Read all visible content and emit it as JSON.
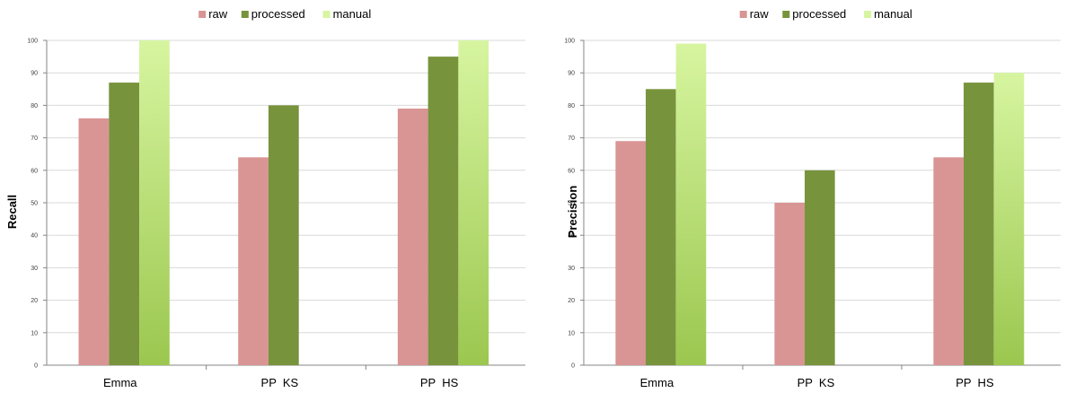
{
  "chart_data": [
    {
      "type": "bar",
      "categories": [
        "Emma",
        "PP  KS",
        "PP  HS"
      ],
      "series": [
        {
          "name": "raw",
          "values": [
            76,
            64,
            79
          ]
        },
        {
          "name": "processed",
          "values": [
            87,
            80,
            95
          ]
        },
        {
          "name": "manual",
          "values": [
            100,
            null,
            100
          ]
        }
      ],
      "title": "",
      "xlabel": "",
      "ylabel": "Recall",
      "ylim": [
        0,
        100
      ],
      "yticks": [
        0,
        10,
        20,
        30,
        40,
        50,
        60,
        70,
        80,
        90,
        100
      ],
      "grid": true,
      "legend": "top-center",
      "colors": {
        "raw": "#d99594",
        "processed": "#77933c",
        "manual_top": "#d7f5a0",
        "manual_bottom": "#9bc74f",
        "grid": "#d9d9d9",
        "axis": "#868686"
      }
    },
    {
      "type": "bar",
      "categories": [
        "Emma",
        "PP  KS",
        "PP  HS"
      ],
      "series": [
        {
          "name": "raw",
          "values": [
            69,
            50,
            64
          ]
        },
        {
          "name": "processed",
          "values": [
            85,
            60,
            87
          ]
        },
        {
          "name": "manual",
          "values": [
            99,
            null,
            90
          ]
        }
      ],
      "title": "",
      "xlabel": "",
      "ylabel": "Precision",
      "ylim": [
        0,
        100
      ],
      "yticks": [
        0,
        10,
        20,
        30,
        40,
        50,
        60,
        70,
        80,
        90,
        100
      ],
      "grid": true,
      "legend": "top-center",
      "colors": {
        "raw": "#d99594",
        "processed": "#77933c",
        "manual_top": "#d7f5a0",
        "manual_bottom": "#9bc74f",
        "grid": "#d9d9d9",
        "axis": "#868686"
      }
    }
  ]
}
